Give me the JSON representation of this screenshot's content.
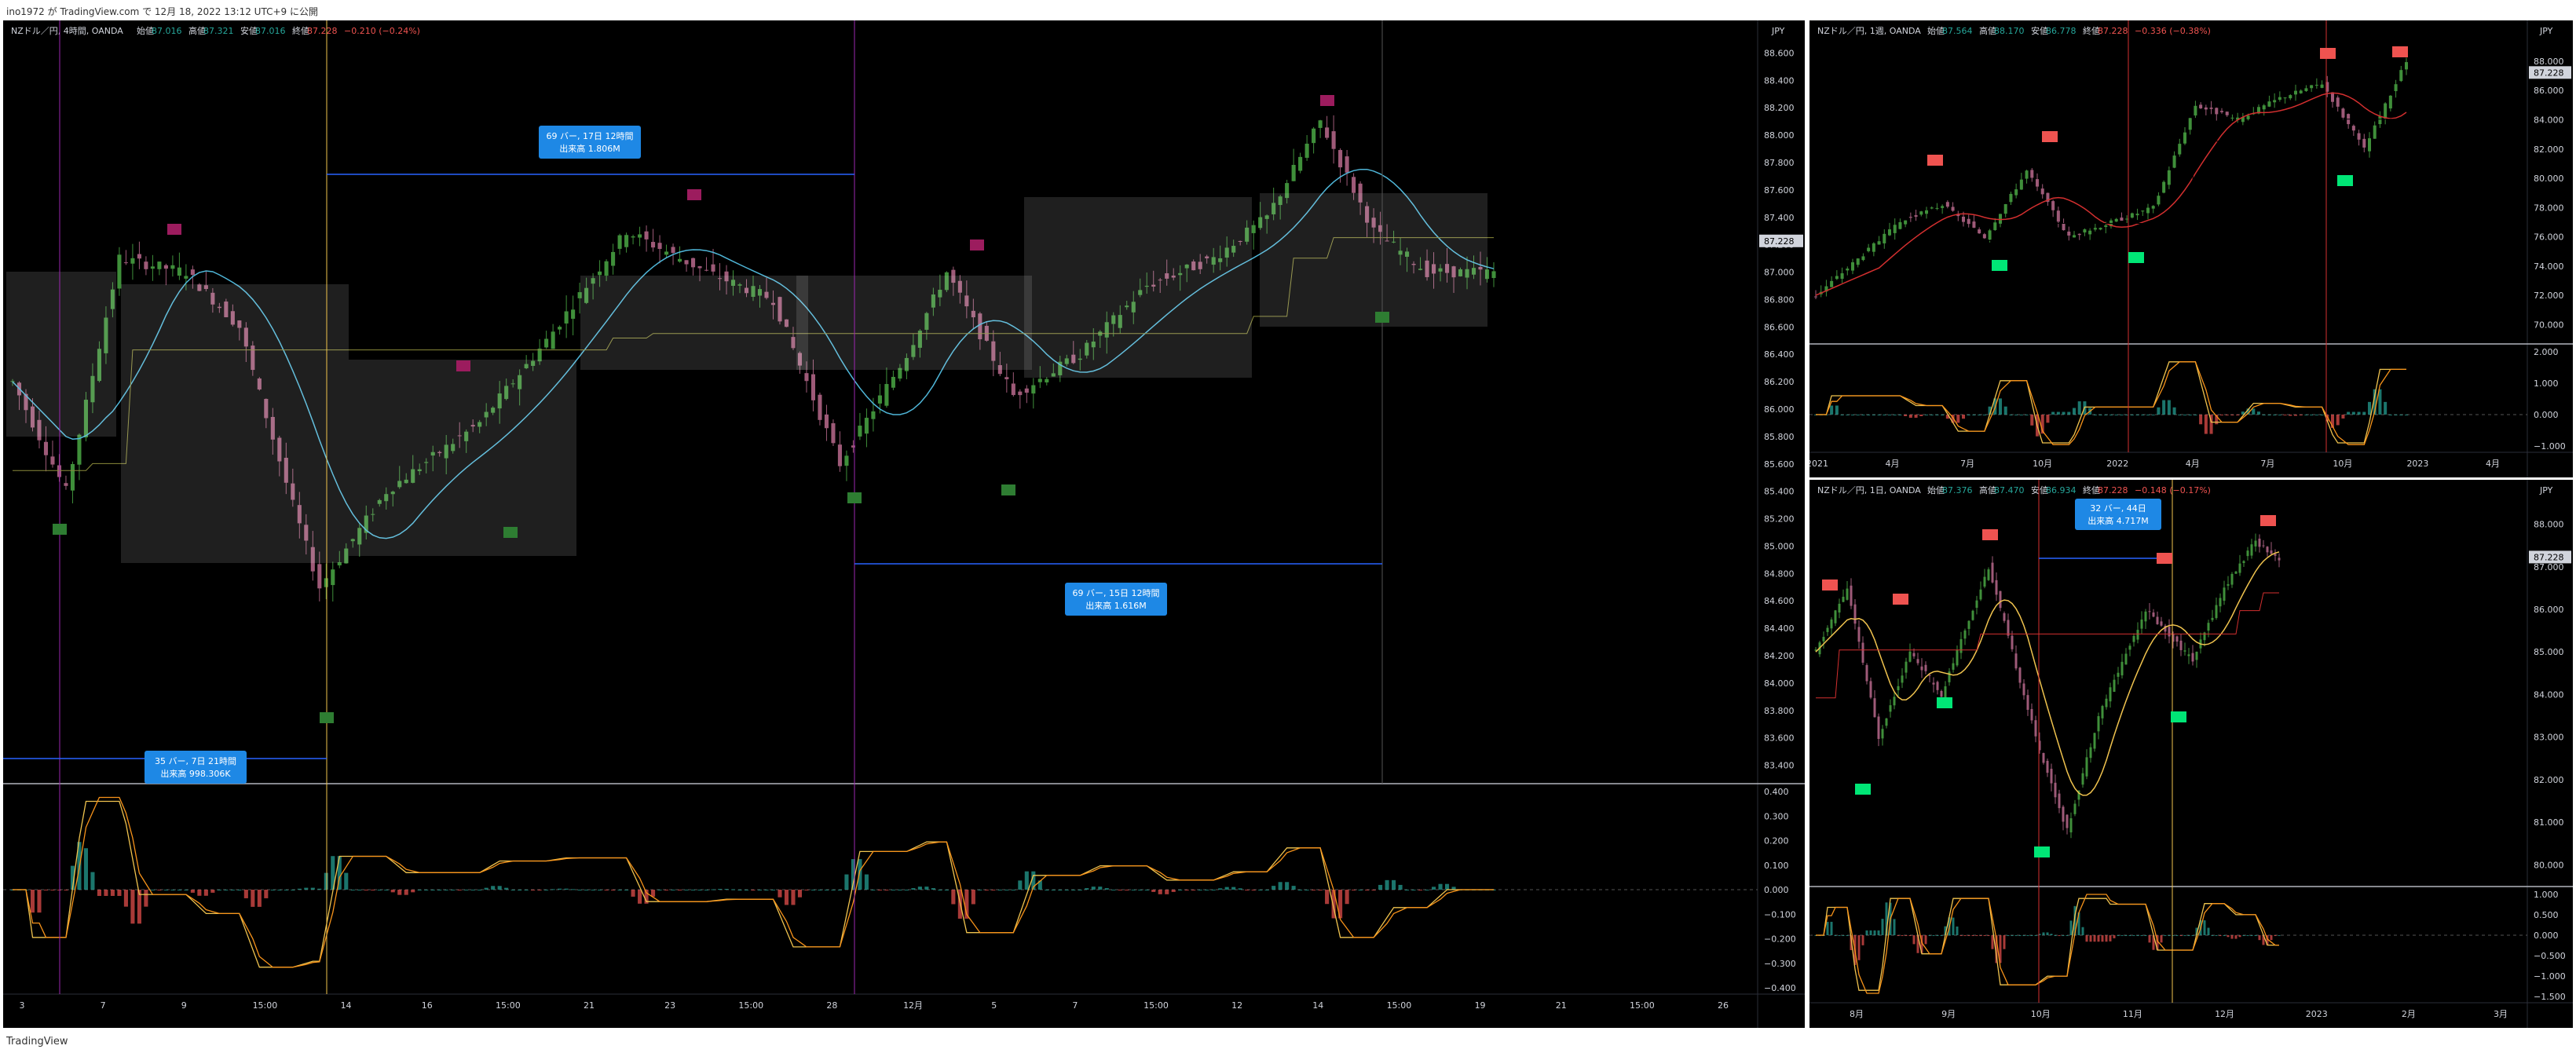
{
  "header": {
    "publish_text": "ino1972 が TradingView.com で 12月 18, 2022 13:12 UTC+9 に公開"
  },
  "footer": {
    "logo_text": "TradingView"
  },
  "panels": {
    "main": {
      "legend": {
        "symbol": "NZドル／円, 4時間, OANDA",
        "open_label": "始値",
        "open": "87.016",
        "high_label": "高値",
        "high": "87.321",
        "low_label": "安値",
        "low": "87.016",
        "close_label": "終値",
        "close": "87.228",
        "change": "−0.210 (−0.24%)"
      },
      "currency": "JPY",
      "last_price": "87.228",
      "price_ticks": [
        "88.600",
        "88.400",
        "88.200",
        "88.000",
        "87.800",
        "87.600",
        "87.400",
        "87.200",
        "87.000",
        "86.800",
        "86.600",
        "86.400",
        "86.200",
        "86.000",
        "85.800",
        "85.600",
        "85.400",
        "85.200",
        "85.000",
        "84.800",
        "84.600",
        "84.400",
        "84.200",
        "84.000",
        "83.800",
        "83.600",
        "83.400"
      ],
      "osc_ticks": [
        "0.400",
        "0.300",
        "0.200",
        "0.100",
        "0.000",
        "−0.100",
        "−0.200",
        "−0.300",
        "−0.400"
      ],
      "time_ticks": [
        "3",
        "7",
        "9",
        "15:00",
        "14",
        "16",
        "15:00",
        "21",
        "23",
        "15:00",
        "28",
        "12月",
        "5",
        "7",
        "15:00",
        "12",
        "14",
        "15:00",
        "19",
        "21",
        "15:00",
        "26"
      ],
      "annotations": [
        {
          "line1": "69 バー, 17日 12時間",
          "line2": "出来高 1.806M"
        },
        {
          "line1": "69 バー, 15日 12時間",
          "line2": "出来高 1.616M"
        },
        {
          "line1": "35 バー, 7日 21時間",
          "line2": "出来高 998.306K"
        }
      ]
    },
    "weekly": {
      "legend": {
        "symbol": "NZドル／円, 1週, OANDA",
        "open_label": "始値",
        "open": "87.564",
        "high_label": "高値",
        "high": "88.170",
        "low_label": "安値",
        "low": "86.778",
        "close_label": "終値",
        "close": "87.228",
        "change": "−0.336 (−0.38%)"
      },
      "currency": "JPY",
      "last_price": "87.228",
      "price_ticks": [
        "88.000",
        "86.000",
        "84.000",
        "82.000",
        "80.000",
        "78.000",
        "76.000",
        "74.000",
        "72.000",
        "70.000"
      ],
      "osc_ticks": [
        "2.000",
        "1.000",
        "0.000",
        "−1.000"
      ],
      "time_ticks": [
        "2021",
        "4月",
        "7月",
        "10月",
        "2022",
        "4月",
        "7月",
        "10月",
        "2023",
        "4月"
      ]
    },
    "daily": {
      "legend": {
        "symbol": "NZドル／円, 1日, OANDA",
        "open_label": "始値",
        "open": "87.376",
        "high_label": "高値",
        "high": "87.470",
        "low_label": "安値",
        "low": "86.934",
        "close_label": "終値",
        "close": "87.228",
        "change": "−0.148 (−0.17%)"
      },
      "currency": "JPY",
      "last_price": "87.228",
      "price_ticks": [
        "88.000",
        "87.000",
        "86.000",
        "85.000",
        "84.000",
        "83.000",
        "82.000",
        "81.000",
        "80.000"
      ],
      "osc_ticks": [
        "1.000",
        "0.500",
        "0.000",
        "−0.500",
        "−1.000",
        "−1.500"
      ],
      "time_ticks": [
        "8月",
        "9月",
        "10月",
        "11月",
        "12月",
        "2023",
        "2月",
        "3月"
      ],
      "annotation": {
        "line1": "32 バー, 44日",
        "line2": "出来高 4.717M"
      }
    }
  },
  "chart_data": [
    {
      "type": "candlestick",
      "title": "NZドル／円, 4時間, OANDA",
      "ylabel": "JPY",
      "ylim": [
        83.3,
        88.7
      ],
      "last": 87.228,
      "anchors": [
        [
          0,
          86.2
        ],
        [
          8,
          85.4
        ],
        [
          16,
          87.1
        ],
        [
          26,
          87.0
        ],
        [
          34,
          86.6
        ],
        [
          42,
          85.3
        ],
        [
          46,
          84.7
        ],
        [
          56,
          85.4
        ],
        [
          70,
          85.9
        ],
        [
          80,
          86.5
        ],
        [
          92,
          87.3
        ],
        [
          104,
          87.0
        ],
        [
          114,
          86.8
        ],
        [
          124,
          85.6
        ],
        [
          134,
          86.4
        ],
        [
          140,
          87.0
        ],
        [
          150,
          86.1
        ],
        [
          160,
          86.4
        ],
        [
          170,
          86.9
        ],
        [
          180,
          87.1
        ],
        [
          188,
          87.4
        ],
        [
          196,
          88.1
        ],
        [
          204,
          87.3
        ],
        [
          212,
          87.0
        ],
        [
          222,
          87.0
        ]
      ]
    },
    {
      "type": "candlestick",
      "title": "NZドル／円, 1週, OANDA",
      "ylabel": "JPY",
      "ylim": [
        69,
        89.5
      ],
      "last": 87.228,
      "anchors": [
        [
          0,
          72.0
        ],
        [
          8,
          74.5
        ],
        [
          16,
          77.0
        ],
        [
          24,
          78.2
        ],
        [
          32,
          76.0
        ],
        [
          40,
          80.5
        ],
        [
          48,
          76.0
        ],
        [
          56,
          77.0
        ],
        [
          64,
          78.0
        ],
        [
          72,
          85.0
        ],
        [
          80,
          84.0
        ],
        [
          88,
          85.5
        ],
        [
          96,
          86.5
        ],
        [
          104,
          82.0
        ],
        [
          112,
          88.0
        ]
      ]
    },
    {
      "type": "candlestick",
      "title": "NZドル／円, 1日, OANDA",
      "ylabel": "JPY",
      "ylim": [
        79.6,
        88.6
      ],
      "last": 87.228,
      "anchors": [
        [
          0,
          85.0
        ],
        [
          8,
          86.5
        ],
        [
          16,
          83.0
        ],
        [
          24,
          85.0
        ],
        [
          32,
          84.0
        ],
        [
          44,
          87.0
        ],
        [
          56,
          83.0
        ],
        [
          64,
          80.8
        ],
        [
          72,
          83.5
        ],
        [
          84,
          86.0
        ],
        [
          96,
          84.8
        ],
        [
          104,
          86.5
        ],
        [
          112,
          87.6
        ],
        [
          118,
          87.2
        ]
      ]
    }
  ]
}
